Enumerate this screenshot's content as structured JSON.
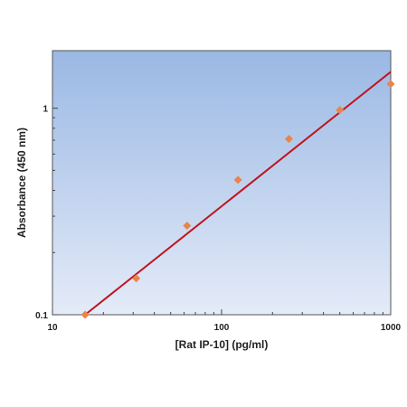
{
  "chart_data": {
    "type": "scatter",
    "title": "",
    "xlabel": "[Rat IP-10] (pg/ml)",
    "ylabel": "Absorbance (450 nm)",
    "x_scale": "log",
    "y_scale": "log",
    "xlim": [
      10,
      1000
    ],
    "ylim": [
      0.1,
      1.9
    ],
    "x_ticks": [
      {
        "value": 10,
        "label": "10"
      },
      {
        "value": 100,
        "label": "100"
      },
      {
        "value": 1000,
        "label": "1000"
      }
    ],
    "y_ticks": [
      {
        "value": 0.1,
        "label": "0.1"
      },
      {
        "value": 1,
        "label": "1"
      }
    ],
    "grid": false,
    "points": [
      {
        "x": 15.6,
        "y": 0.1
      },
      {
        "x": 31.3,
        "y": 0.15
      },
      {
        "x": 62.5,
        "y": 0.27
      },
      {
        "x": 125,
        "y": 0.45
      },
      {
        "x": 250,
        "y": 0.71
      },
      {
        "x": 500,
        "y": 0.98
      },
      {
        "x": 1000,
        "y": 1.31
      }
    ],
    "fit_line": {
      "x": [
        15.6,
        1000
      ],
      "y": [
        0.1,
        1.5
      ]
    },
    "colors": {
      "points": "#e8854a",
      "fit_line": "#c0141e",
      "plot_bg_top": "#9ab8e4",
      "plot_bg_bottom": "#e4ebf8"
    }
  }
}
